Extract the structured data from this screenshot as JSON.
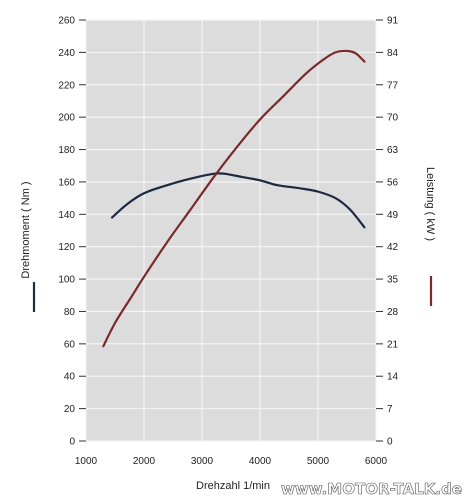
{
  "chart_data": {
    "type": "line",
    "xlabel": "Drehzahl  1/min",
    "x_ticks": [
      "1000",
      "2000",
      "3000",
      "4000",
      "5000",
      "6000"
    ],
    "xlim": [
      1000,
      6000
    ],
    "left_axis": {
      "label": "Drehmoment  ( Nm )",
      "ylim": [
        0,
        260
      ],
      "ticks": [
        "0",
        "20",
        "40",
        "60",
        "80",
        "100",
        "120",
        "140",
        "160",
        "180",
        "200",
        "220",
        "240",
        "260"
      ]
    },
    "right_axis": {
      "label": "Leistung  ( kW )",
      "ylim": [
        0,
        91
      ],
      "ticks": [
        "0",
        "7",
        "14",
        "21",
        "28",
        "35",
        "42",
        "49",
        "56",
        "63",
        "70",
        "77",
        "84",
        "91"
      ]
    },
    "grid": true,
    "series": [
      {
        "axis": "left",
        "color": "#1c2a40",
        "x": [
          1450,
          1700,
          2000,
          2400,
          2800,
          3200,
          3400,
          3700,
          4000,
          4300,
          4700,
          5000,
          5300,
          5550,
          5800
        ],
        "y": [
          138,
          146,
          153,
          158,
          162,
          165,
          165,
          163,
          161,
          158,
          156,
          154,
          150,
          143,
          132
        ]
      },
      {
        "axis": "right",
        "color": "#7a2a2a",
        "x": [
          1300,
          1500,
          1800,
          2000,
          2400,
          2800,
          3200,
          3600,
          4000,
          4400,
          4800,
          5100,
          5300,
          5500,
          5650,
          5800
        ],
        "y": [
          20.5,
          25.5,
          31.5,
          35.5,
          43,
          50,
          57,
          63.5,
          69.5,
          74.5,
          79.5,
          82.5,
          84,
          84.3,
          83.8,
          82
        ]
      }
    ],
    "left_legend_color": "#1c2a40",
    "right_legend_color": "#7a2a2a"
  },
  "watermark": "www.MOTOR-TALK.de",
  "colors": {
    "plot_background": "#dcdcdc",
    "grid": "#f6f6f6"
  }
}
